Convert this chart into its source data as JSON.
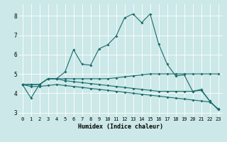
{
  "title": "",
  "xlabel": "Humidex (Indice chaleur)",
  "xlim": [
    -0.5,
    23.5
  ],
  "ylim": [
    2.8,
    8.6
  ],
  "xticks": [
    0,
    1,
    2,
    3,
    4,
    5,
    6,
    7,
    8,
    9,
    10,
    11,
    12,
    13,
    14,
    15,
    16,
    17,
    18,
    19,
    20,
    21,
    22,
    23
  ],
  "yticks": [
    3,
    4,
    5,
    6,
    7,
    8
  ],
  "bg_color": "#cce8e8",
  "line_color": "#1a6b6b",
  "grid_color": "#ffffff",
  "line1_x": [
    0,
    1,
    2,
    3,
    4,
    5,
    6,
    7,
    8,
    9,
    10,
    11,
    12,
    13,
    14,
    15,
    16,
    17,
    18,
    19,
    20,
    21,
    22,
    23
  ],
  "line1_y": [
    4.45,
    3.75,
    4.45,
    4.75,
    4.75,
    5.1,
    6.25,
    5.5,
    5.45,
    6.3,
    6.5,
    6.95,
    7.9,
    8.1,
    7.65,
    8.1,
    6.55,
    5.5,
    4.9,
    4.95,
    4.1,
    4.2,
    3.6,
    3.15
  ],
  "line2_x": [
    0,
    1,
    2,
    3,
    4,
    5,
    6,
    7,
    8,
    9,
    10,
    11,
    12,
    13,
    14,
    15,
    16,
    17,
    18,
    19,
    20,
    21,
    22,
    23
  ],
  "line2_y": [
    4.45,
    4.45,
    4.45,
    4.75,
    4.75,
    4.75,
    4.75,
    4.75,
    4.75,
    4.75,
    4.75,
    4.8,
    4.85,
    4.9,
    4.95,
    5.0,
    5.0,
    5.0,
    5.0,
    5.0,
    5.0,
    5.0,
    5.0,
    5.0
  ],
  "line3_x": [
    0,
    1,
    2,
    3,
    4,
    5,
    6,
    7,
    8,
    9,
    10,
    11,
    12,
    13,
    14,
    15,
    16,
    17,
    18,
    19,
    20,
    21,
    22,
    23
  ],
  "line3_y": [
    4.45,
    4.35,
    4.35,
    4.4,
    4.45,
    4.4,
    4.35,
    4.3,
    4.25,
    4.2,
    4.15,
    4.1,
    4.05,
    4.0,
    3.95,
    3.9,
    3.85,
    3.8,
    3.75,
    3.7,
    3.65,
    3.6,
    3.55,
    3.2
  ],
  "line4_x": [
    0,
    1,
    2,
    3,
    4,
    5,
    6,
    7,
    8,
    9,
    10,
    11,
    12,
    13,
    14,
    15,
    16,
    17,
    18,
    19,
    20,
    21,
    22,
    23
  ],
  "line4_y": [
    4.45,
    4.45,
    4.45,
    4.75,
    4.75,
    4.65,
    4.6,
    4.55,
    4.5,
    4.45,
    4.4,
    4.35,
    4.3,
    4.25,
    4.2,
    4.15,
    4.1,
    4.1,
    4.1,
    4.1,
    4.1,
    4.15,
    3.6,
    3.15
  ],
  "lw": 0.8,
  "ms": 2.0,
  "xlabel_fontsize": 6.0,
  "tick_fontsize": 5.0
}
